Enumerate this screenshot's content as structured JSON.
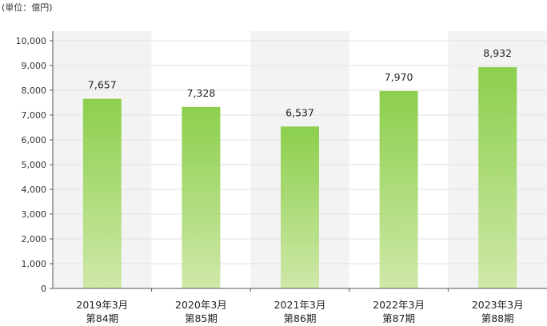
{
  "unit_label": "(単位：億円)",
  "chart_data": {
    "type": "bar",
    "categories": [
      [
        "2019年3月",
        "第84期"
      ],
      [
        "2020年3月",
        "第85期"
      ],
      [
        "2021年3月",
        "第86期"
      ],
      [
        "2022年3月",
        "第87期"
      ],
      [
        "2023年3月",
        "第88期"
      ]
    ],
    "values": [
      7657,
      7328,
      6537,
      7970,
      8932
    ],
    "value_labels": [
      "7,657",
      "7,328",
      "6,537",
      "7,970",
      "8,932"
    ],
    "ylim": [
      0,
      10000
    ],
    "yticks": [
      0,
      1000,
      2000,
      3000,
      4000,
      5000,
      6000,
      7000,
      8000,
      9000,
      10000
    ],
    "ytick_labels": [
      "0",
      "1,000",
      "2,000",
      "3,000",
      "4,000",
      "5,000",
      "6,000",
      "7,000",
      "8,000",
      "9,000",
      "10,000"
    ],
    "grid": true,
    "title": "",
    "xlabel": "",
    "ylabel": "",
    "colors": {
      "bar_top": "#8ccf4d",
      "bar_bottom": "#cfe8a8",
      "band": "#f3f3f3",
      "grid": "#e0e0e0",
      "axis": "#555555"
    }
  }
}
